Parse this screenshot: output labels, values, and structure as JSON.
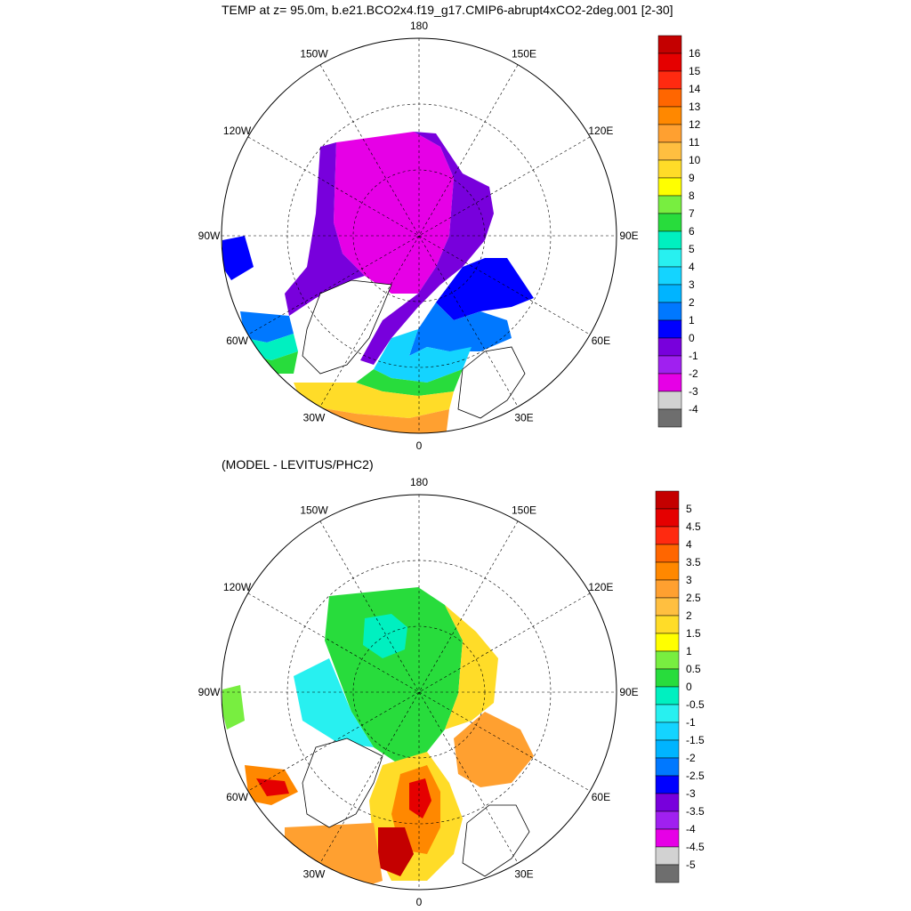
{
  "panels": [
    {
      "title": "TEMP at z=  95.0m, b.e21.BCO2x4.f19_g17.CMIP6-abrupt4xCO2-2deg.001 [2-30]",
      "lon_labels": [
        "180",
        "150E",
        "120E",
        "90E",
        "60E",
        "30E",
        "0",
        "30W",
        "60W",
        "90W",
        "120W",
        "150W"
      ],
      "colorbar": {
        "labels": [
          "16",
          "15",
          "14",
          "13",
          "12",
          "11",
          "10",
          "9",
          "8",
          "7",
          "6",
          "5",
          "4",
          "3",
          "2",
          "1",
          "0",
          "-1",
          "-2",
          "-3",
          "-4"
        ],
        "colors": [
          "#c40000",
          "#e50000",
          "#ff2a10",
          "#ff6600",
          "#ff8800",
          "#ffa030",
          "#ffbf40",
          "#ffdc28",
          "#ffff00",
          "#78ee40",
          "#28dc3c",
          "#00f0c0",
          "#28f0f0",
          "#14d4ff",
          "#00b4ff",
          "#0078ff",
          "#0000ff",
          "#7800dc",
          "#a020f0",
          "#e600e6",
          "#d2d2d2",
          "#6e6e6e"
        ]
      }
    },
    {
      "title": "(MODEL - LEVITUS/PHC2)",
      "lon_labels": [
        "180",
        "150E",
        "120E",
        "90E",
        "60E",
        "30E",
        "0",
        "30W",
        "60W",
        "90W",
        "120W",
        "150W"
      ],
      "colorbar": {
        "labels": [
          "5",
          "4.5",
          "4",
          "3.5",
          "3",
          "2.5",
          "2",
          "1.5",
          "1",
          "0.5",
          "0",
          "-0.5",
          "-1",
          "-1.5",
          "-2",
          "-2.5",
          "-3",
          "-3.5",
          "-4",
          "-4.5",
          "-5"
        ],
        "colors": [
          "#c40000",
          "#e50000",
          "#ff2a10",
          "#ff6600",
          "#ff8800",
          "#ffa030",
          "#ffbf40",
          "#ffdc28",
          "#ffff00",
          "#78ee40",
          "#28dc3c",
          "#00f0c0",
          "#28f0f0",
          "#14d4ff",
          "#00b4ff",
          "#0078ff",
          "#0000ff",
          "#7800dc",
          "#a020f0",
          "#e600e6",
          "#d2d2d2",
          "#6e6e6e"
        ]
      }
    }
  ]
}
